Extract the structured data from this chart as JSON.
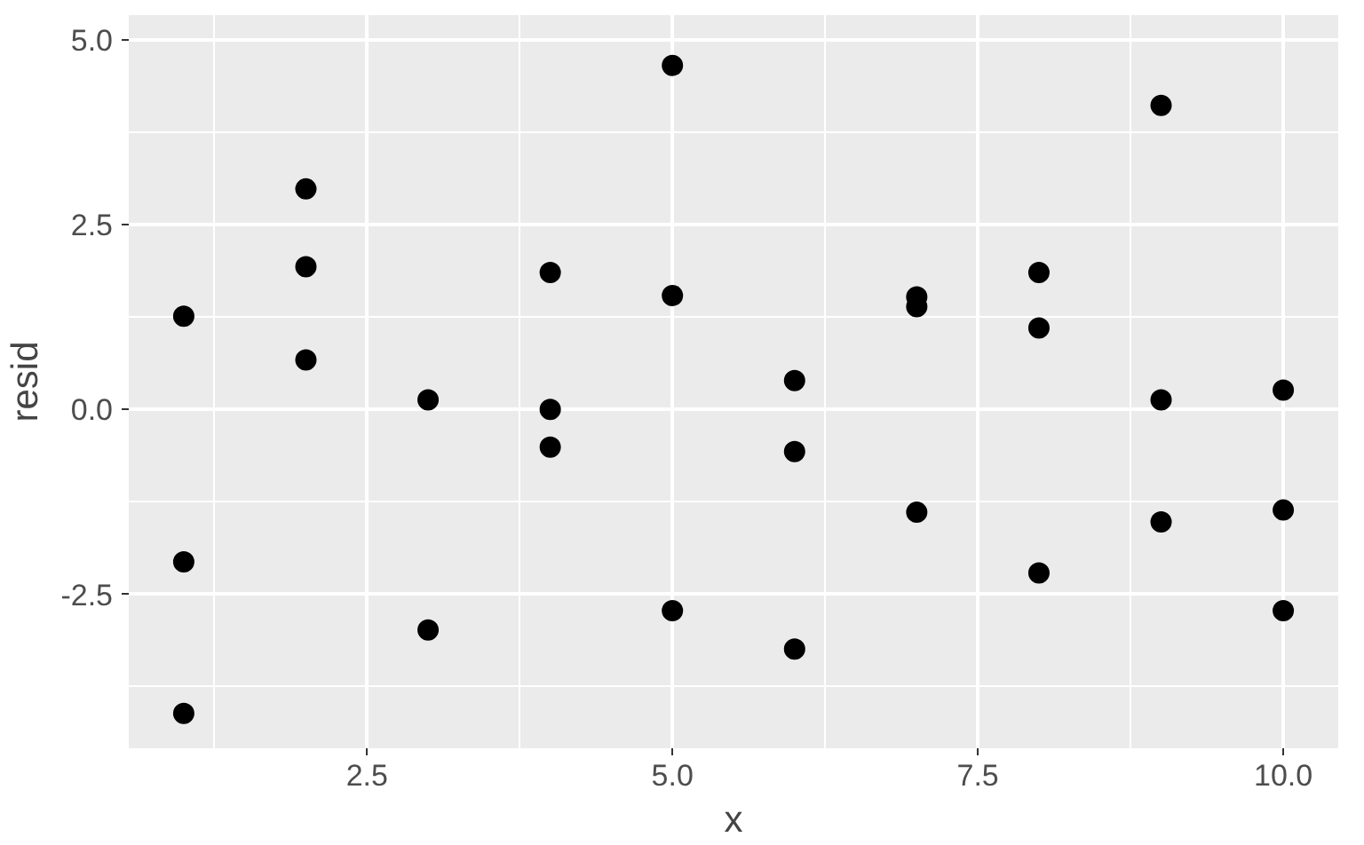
{
  "chart_data": {
    "type": "scatter",
    "xlabel": "x",
    "ylabel": "resid",
    "marker": "circle",
    "grid": true,
    "xlim": [
      0.55,
      10.45
    ],
    "ylim": [
      -4.58,
      5.33
    ],
    "xticks": [
      2.5,
      {
        "value": 5,
        "label": "5.0"
      },
      7.5,
      {
        "value": 10,
        "label": "10.0"
      }
    ],
    "yticks": [
      {
        "value": -2.5,
        "label": "-2.5"
      },
      {
        "value": 0,
        "label": "0.0"
      },
      2.5,
      {
        "value": 5,
        "label": "5.0"
      }
    ],
    "series": [
      {
        "color": "#000000",
        "x": [
          1,
          1,
          1,
          2,
          2,
          2,
          3,
          3,
          4,
          4,
          4,
          5,
          5,
          5,
          6,
          6,
          6,
          7,
          7,
          7,
          8,
          8,
          8,
          9,
          9,
          9,
          10,
          10,
          10
        ],
        "values": [
          1.26,
          -2.06,
          -4.11,
          2.98,
          1.93,
          0.67,
          0.13,
          -2.98,
          1.85,
          0.0,
          -0.51,
          4.65,
          1.54,
          -2.72,
          0.39,
          -0.57,
          -3.24,
          1.52,
          1.39,
          -1.39,
          1.85,
          1.1,
          -2.21,
          4.11,
          0.13,
          -1.52,
          0.26,
          -1.36,
          -2.72
        ]
      }
    ]
  }
}
